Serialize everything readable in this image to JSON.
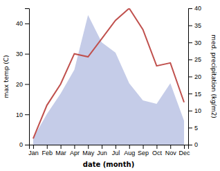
{
  "chart_data": {
    "type": "line",
    "xlabel": "date (month)",
    "ylabel": "max temp (C)",
    "y2label": "med. precipitation (kg/m2)",
    "categories": [
      "Jan",
      "Feb",
      "Mar",
      "Apr",
      "May",
      "Jun",
      "Jul",
      "Aug",
      "Sep",
      "Oct",
      "Nov",
      "Dec"
    ],
    "series": [
      {
        "type": "area",
        "axis": "y2",
        "color": "#c5cce8",
        "values": [
          2,
          9,
          15,
          22,
          38,
          30,
          27,
          18,
          13,
          12,
          18,
          7
        ]
      },
      {
        "type": "line",
        "color": "#c0504d",
        "values": [
          2,
          13,
          20,
          30,
          29,
          35,
          41,
          45,
          38,
          26,
          27,
          14
        ]
      }
    ],
    "ylim": [
      0,
      45
    ],
    "yticks": [
      0,
      10,
      20,
      30,
      40
    ],
    "y2lim": [
      0,
      40
    ],
    "y2ticks": [
      0,
      5,
      10,
      15,
      20,
      25,
      30,
      35,
      40
    ]
  }
}
